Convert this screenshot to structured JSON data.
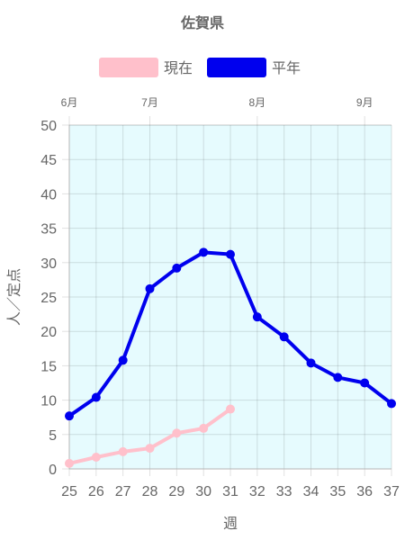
{
  "chart_data": {
    "type": "line",
    "title": "佐賀県",
    "xlabel": "週",
    "ylabel": "人／定点",
    "categories": [
      "25",
      "26",
      "27",
      "28",
      "29",
      "30",
      "31",
      "32",
      "33",
      "34",
      "35",
      "36",
      "37"
    ],
    "months": [
      {
        "label": "6月",
        "week": 25
      },
      {
        "label": "7月",
        "week": 28
      },
      {
        "label": "8月",
        "week": 32
      },
      {
        "label": "9月",
        "week": 36
      }
    ],
    "ylim": [
      0,
      50
    ],
    "yticks": [
      "0",
      "5",
      "10",
      "15",
      "20",
      "25",
      "30",
      "35",
      "40",
      "45",
      "50"
    ],
    "grid": true,
    "legend_position": "top",
    "background_color": "#e6fbfe",
    "series": [
      {
        "name": "現在",
        "color": "#ffc0cb",
        "values": [
          0.8,
          1.7,
          2.5,
          3.0,
          5.2,
          5.9,
          8.7,
          null,
          null,
          null,
          null,
          null,
          null
        ]
      },
      {
        "name": "平年",
        "color": "#0000ee",
        "values": [
          7.7,
          10.4,
          15.8,
          26.2,
          29.2,
          31.5,
          31.2,
          22.1,
          19.2,
          15.4,
          13.3,
          12.5,
          9.5
        ]
      }
    ]
  }
}
